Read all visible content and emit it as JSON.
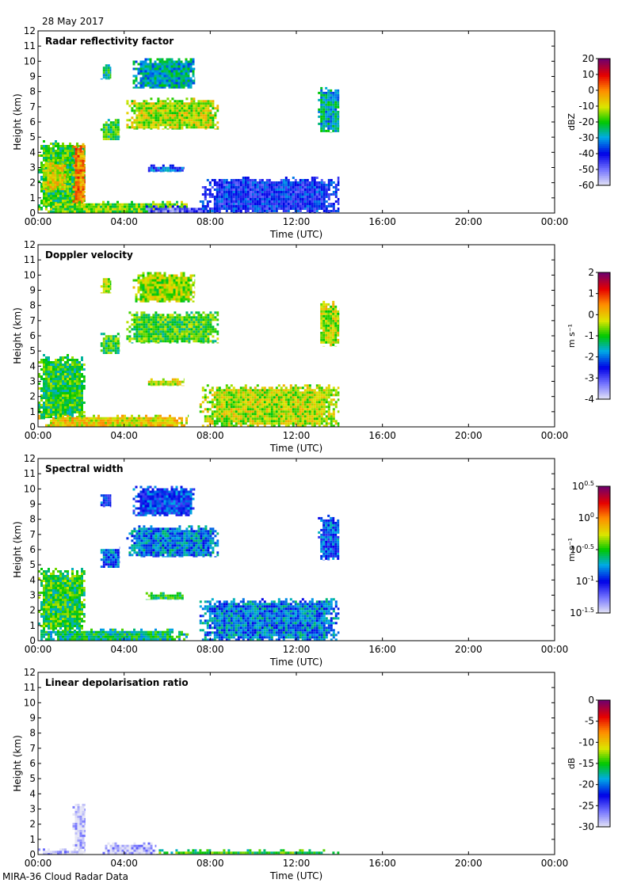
{
  "header": {
    "date": "28 May 2017"
  },
  "footer": {
    "text": "MIRA-36 Cloud Radar Data"
  },
  "chart_data": [
    {
      "type": "heatmap",
      "title": "Radar reflectivity factor",
      "xlabel": "Time (UTC)",
      "ylabel": "Height (km)",
      "xlim": [
        0,
        24
      ],
      "ylim": [
        0,
        12
      ],
      "x_ticks": [
        "00:00",
        "04:00",
        "08:00",
        "12:00",
        "16:00",
        "20:00",
        "00:00"
      ],
      "y_ticks": [
        "0",
        "1",
        "2",
        "3",
        "4",
        "5",
        "6",
        "7",
        "8",
        "9",
        "10",
        "11",
        "12"
      ],
      "colorbar": {
        "label": "dBZ",
        "range": [
          -60,
          20
        ],
        "ticks": [
          "20",
          "10",
          "0",
          "-10",
          "-20",
          "-30",
          "-40",
          "-50",
          "-60"
        ]
      },
      "regions": [
        {
          "t0": 0.0,
          "t1": 2.2,
          "h0": 0.2,
          "h1": 4.8,
          "value": 0.5
        },
        {
          "t0": 0.2,
          "t1": 1.3,
          "h0": 1.5,
          "h1": 3.5,
          "value": 0.65
        },
        {
          "t0": 1.6,
          "t1": 2.2,
          "h0": 0.5,
          "h1": 4.6,
          "value": 0.75
        },
        {
          "t0": 0.0,
          "t1": 7.0,
          "h0": 0.0,
          "h1": 0.8,
          "value": 0.55
        },
        {
          "t0": 5.0,
          "t1": 8.0,
          "h0": 0.0,
          "h1": 0.5,
          "value": 0.15
        },
        {
          "t0": 7.5,
          "t1": 14.0,
          "h0": 0.0,
          "h1": 2.4,
          "value": 0.25
        },
        {
          "t0": 2.9,
          "t1": 3.4,
          "h0": 8.8,
          "h1": 9.8,
          "value": 0.45
        },
        {
          "t0": 4.4,
          "t1": 7.3,
          "h0": 8.2,
          "h1": 10.2,
          "value": 0.4
        },
        {
          "t0": 2.9,
          "t1": 3.8,
          "h0": 4.8,
          "h1": 6.2,
          "value": 0.5
        },
        {
          "t0": 4.1,
          "t1": 8.4,
          "h0": 5.5,
          "h1": 7.6,
          "value": 0.6
        },
        {
          "t0": 5.0,
          "t1": 6.8,
          "h0": 2.7,
          "h1": 3.2,
          "value": 0.3
        },
        {
          "t0": 13.0,
          "t1": 14.0,
          "h0": 5.3,
          "h1": 8.3,
          "value": 0.4
        }
      ]
    },
    {
      "type": "heatmap",
      "title": "Doppler velocity",
      "xlabel": "Time (UTC)",
      "ylabel": "Height (km)",
      "xlim": [
        0,
        24
      ],
      "ylim": [
        0,
        12
      ],
      "x_ticks": [
        "00:00",
        "04:00",
        "08:00",
        "12:00",
        "16:00",
        "20:00",
        "00:00"
      ],
      "y_ticks": [
        "0",
        "1",
        "2",
        "3",
        "4",
        "5",
        "6",
        "7",
        "8",
        "9",
        "10",
        "11",
        "12"
      ],
      "colorbar": {
        "label": "m s⁻¹",
        "range": [
          -4,
          2
        ],
        "ticks": [
          "2",
          "1",
          "0",
          "-1",
          "-2",
          "-3",
          "-4"
        ]
      },
      "regions": [
        {
          "t0": 0.0,
          "t1": 2.2,
          "h0": 0.5,
          "h1": 4.8,
          "value": 0.5
        },
        {
          "t0": 0.0,
          "t1": 7.0,
          "h0": 0.0,
          "h1": 0.8,
          "value": 0.65
        },
        {
          "t0": 7.5,
          "t1": 14.0,
          "h0": 0.0,
          "h1": 2.8,
          "value": 0.6
        },
        {
          "t0": 2.9,
          "t1": 3.4,
          "h0": 8.8,
          "h1": 9.8,
          "value": 0.58
        },
        {
          "t0": 4.4,
          "t1": 7.3,
          "h0": 8.2,
          "h1": 10.2,
          "value": 0.58
        },
        {
          "t0": 2.9,
          "t1": 3.8,
          "h0": 4.8,
          "h1": 6.2,
          "value": 0.5
        },
        {
          "t0": 4.1,
          "t1": 8.4,
          "h0": 5.5,
          "h1": 7.6,
          "value": 0.52
        },
        {
          "t0": 5.0,
          "t1": 6.8,
          "h0": 2.7,
          "h1": 3.2,
          "value": 0.62
        },
        {
          "t0": 13.0,
          "t1": 14.0,
          "h0": 5.3,
          "h1": 8.3,
          "value": 0.6
        }
      ]
    },
    {
      "type": "heatmap",
      "title": "Spectral width",
      "xlabel": "Time (UTC)",
      "ylabel": "Height (km)",
      "xlim": [
        0,
        24
      ],
      "ylim": [
        0,
        12
      ],
      "x_ticks": [
        "00:00",
        "04:00",
        "08:00",
        "12:00",
        "16:00",
        "20:00",
        "00:00"
      ],
      "y_ticks": [
        "0",
        "1",
        "2",
        "3",
        "4",
        "5",
        "6",
        "7",
        "8",
        "9",
        "10",
        "11",
        "12"
      ],
      "colorbar": {
        "label": "m s⁻¹",
        "range": [
          -1.5,
          0.5
        ],
        "ticks": [
          "10^0.5",
          "10^0",
          "10^-0.5",
          "10^-1",
          "10^-1.5"
        ]
      },
      "regions": [
        {
          "t0": 0.0,
          "t1": 2.2,
          "h0": 0.5,
          "h1": 4.8,
          "value": 0.5
        },
        {
          "t0": 0.0,
          "t1": 7.0,
          "h0": 0.0,
          "h1": 0.8,
          "value": 0.45
        },
        {
          "t0": 7.5,
          "t1": 14.0,
          "h0": 0.0,
          "h1": 2.8,
          "value": 0.35
        },
        {
          "t0": 2.9,
          "t1": 3.4,
          "h0": 8.8,
          "h1": 9.8,
          "value": 0.28
        },
        {
          "t0": 4.4,
          "t1": 7.3,
          "h0": 8.2,
          "h1": 10.2,
          "value": 0.28
        },
        {
          "t0": 2.9,
          "t1": 3.8,
          "h0": 4.8,
          "h1": 6.2,
          "value": 0.32
        },
        {
          "t0": 4.1,
          "t1": 8.4,
          "h0": 5.5,
          "h1": 7.6,
          "value": 0.35
        },
        {
          "t0": 5.0,
          "t1": 6.8,
          "h0": 2.7,
          "h1": 3.2,
          "value": 0.48
        },
        {
          "t0": 13.0,
          "t1": 14.0,
          "h0": 5.3,
          "h1": 8.3,
          "value": 0.3
        }
      ]
    },
    {
      "type": "heatmap",
      "title": "Linear depolarisation ratio",
      "xlabel": "Time (UTC)",
      "ylabel": "Height (km)",
      "xlim": [
        0,
        24
      ],
      "ylim": [
        0,
        12
      ],
      "x_ticks": [
        "00:00",
        "04:00",
        "08:00",
        "12:00",
        "16:00",
        "20:00",
        "00:00"
      ],
      "y_ticks": [
        "0",
        "1",
        "2",
        "3",
        "4",
        "5",
        "6",
        "7",
        "8",
        "9",
        "10",
        "11",
        "12"
      ],
      "colorbar": {
        "label": "dB",
        "range": [
          -30,
          0
        ],
        "ticks": [
          "0",
          "-5",
          "-10",
          "-15",
          "-20",
          "-25",
          "-30"
        ]
      },
      "regions": [
        {
          "t0": 0.0,
          "t1": 2.2,
          "h0": 0.0,
          "h1": 0.4,
          "value": 0.05
        },
        {
          "t0": 1.6,
          "t1": 2.2,
          "h0": 0.2,
          "h1": 3.5,
          "value": 0.02
        },
        {
          "t0": 3.0,
          "t1": 5.5,
          "h0": 0.0,
          "h1": 0.8,
          "value": 0.04
        },
        {
          "t0": 5.5,
          "t1": 14.0,
          "h0": 0.0,
          "h1": 0.35,
          "value": 0.5
        }
      ]
    }
  ]
}
